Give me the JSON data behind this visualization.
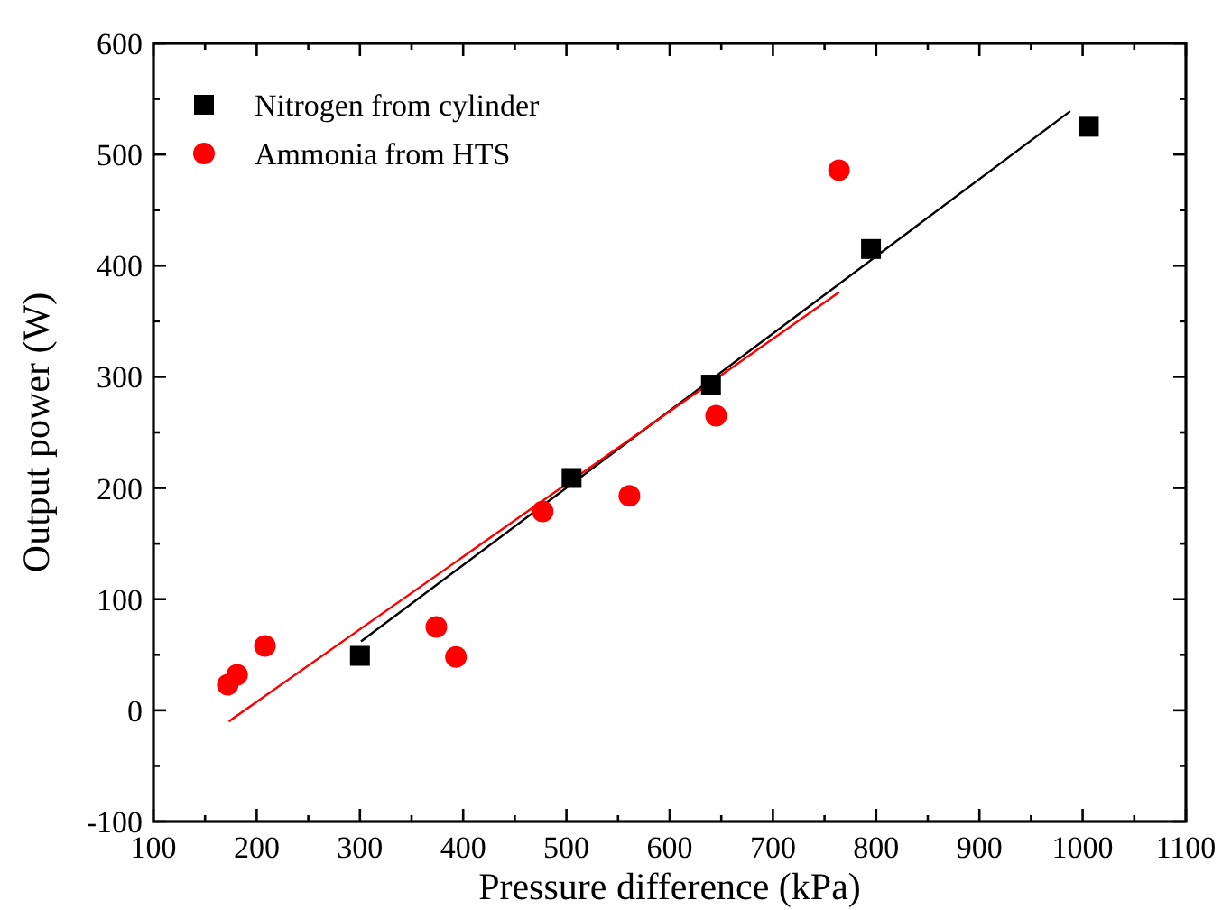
{
  "chart_data": {
    "type": "scatter",
    "xlabel": "Pressure difference (kPa)",
    "ylabel": "Output power (W)",
    "xlim": [
      100,
      1100
    ],
    "ylim": [
      -100,
      600
    ],
    "xticks": [
      100,
      {
        "value": 150,
        "label": null
      },
      200,
      {
        "value": 250,
        "label": null
      },
      300,
      {
        "value": 350,
        "label": null
      },
      400,
      {
        "value": 450,
        "label": null
      },
      500,
      {
        "value": 550,
        "label": null
      },
      600,
      {
        "value": 650,
        "label": null
      },
      700,
      {
        "value": 750,
        "label": null
      },
      800,
      {
        "value": 850,
        "label": null
      },
      900,
      {
        "value": 950,
        "label": null
      },
      1000,
      {
        "value": 1050,
        "label": null
      },
      1100
    ],
    "yticks": [
      -100,
      {
        "value": -50,
        "label": null
      },
      0,
      {
        "value": 50,
        "label": null
      },
      100,
      {
        "value": 150,
        "label": null
      },
      200,
      {
        "value": 250,
        "label": null
      },
      300,
      {
        "value": 350,
        "label": null
      },
      400,
      {
        "value": 450,
        "label": null
      },
      500,
      {
        "value": 550,
        "label": null
      },
      600
    ],
    "legend": "top left",
    "grid": false,
    "series": [
      {
        "name": "Nitrogen from cylinder",
        "color": "#000000",
        "marker": "square",
        "x": [
          300,
          505,
          640,
          795,
          1006
        ],
        "values": [
          49,
          209,
          293,
          415,
          525
        ]
      },
      {
        "name": "Ammonia from HTS",
        "color": "#ff0000",
        "marker": "circle",
        "x": [
          172,
          181,
          208,
          374,
          393,
          477,
          561,
          645,
          764
        ],
        "values": [
          23,
          32,
          58,
          75,
          48,
          179,
          193,
          265,
          486
        ]
      },
      {
        "type": "line",
        "color": "#000000",
        "x": [
          301,
          988
        ],
        "values": [
          62,
          539
        ]
      },
      {
        "type": "line",
        "color": "#ff0000",
        "x": [
          173,
          764
        ],
        "values": [
          -10,
          376
        ]
      }
    ]
  }
}
